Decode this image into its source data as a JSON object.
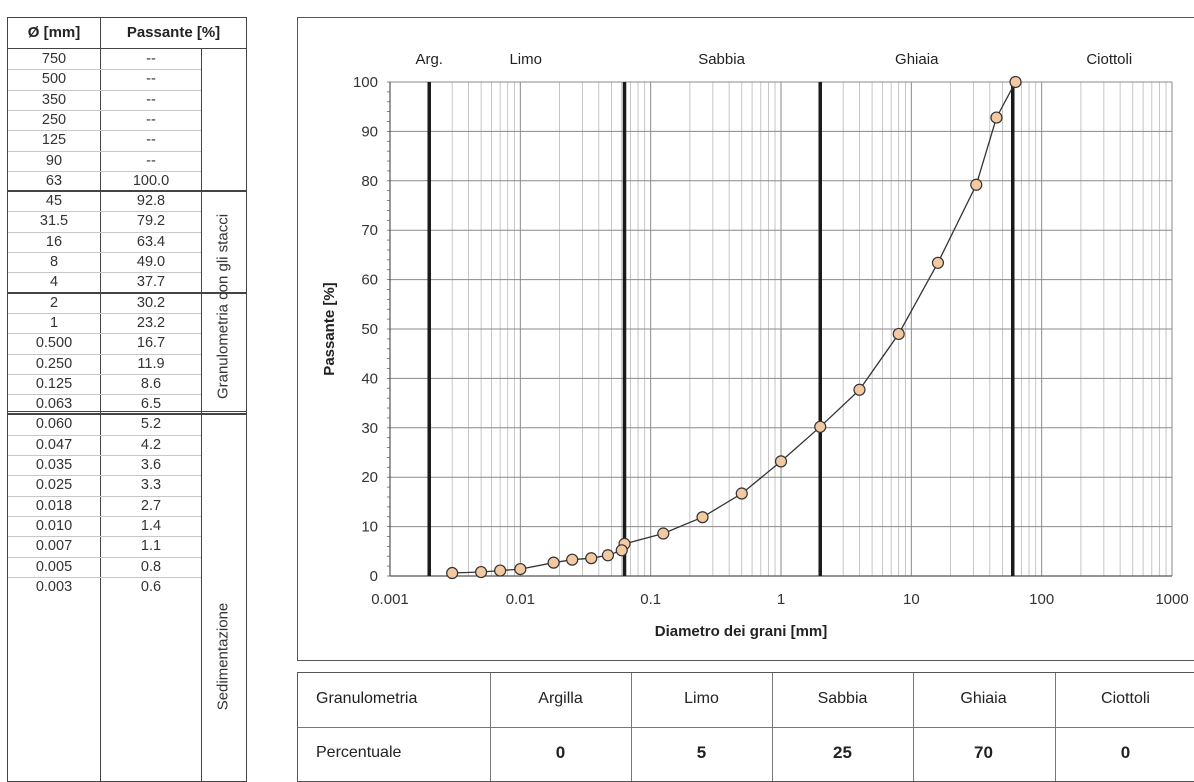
{
  "table": {
    "col_headers": [
      "Ø [mm]",
      "Passante [%]"
    ],
    "rows": [
      {
        "d": "750",
        "p": "--"
      },
      {
        "d": "500",
        "p": "--"
      },
      {
        "d": "350",
        "p": "--"
      },
      {
        "d": "250",
        "p": "--"
      },
      {
        "d": "125",
        "p": "--"
      },
      {
        "d": "90",
        "p": "--"
      },
      {
        "d": "63",
        "p": "100.0"
      },
      {
        "d": "45",
        "p": "92.8"
      },
      {
        "d": "31.5",
        "p": "79.2"
      },
      {
        "d": "16",
        "p": "63.4"
      },
      {
        "d": "8",
        "p": "49.0"
      },
      {
        "d": "4",
        "p": "37.7"
      },
      {
        "d": "2",
        "p": "30.2"
      },
      {
        "d": "1",
        "p": "23.2"
      },
      {
        "d": "0.500",
        "p": "16.7"
      },
      {
        "d": "0.250",
        "p": "11.9"
      },
      {
        "d": "0.125",
        "p": "8.6"
      },
      {
        "d": "0.063",
        "p": "6.5"
      },
      {
        "d": "0.060",
        "p": "5.2"
      },
      {
        "d": "0.047",
        "p": "4.2"
      },
      {
        "d": "0.035",
        "p": "3.6"
      },
      {
        "d": "0.025",
        "p": "3.3"
      },
      {
        "d": "0.018",
        "p": "2.7"
      },
      {
        "d": "0.010",
        "p": "1.4"
      },
      {
        "d": "0.007",
        "p": "1.1"
      },
      {
        "d": "0.005",
        "p": "0.8"
      },
      {
        "d": "0.003",
        "p": "0.6"
      }
    ],
    "group_sieves_label": "Granulometria con gli stacci",
    "group_sedimentation_label": "Sedimentazione"
  },
  "chart_data": {
    "type": "scatter",
    "xlabel": "Diametro dei grani [mm]",
    "ylabel": "Passante [%]",
    "xscale": "log",
    "xlim": [
      0.001,
      1000
    ],
    "ylim": [
      0,
      100
    ],
    "x_ticks": [
      "0.001",
      "0.01",
      "0.1",
      "1",
      "10",
      "100",
      "1000"
    ],
    "y_ticks": [
      "0",
      "10",
      "20",
      "30",
      "40",
      "50",
      "60",
      "70",
      "80",
      "90",
      "100"
    ],
    "grid": true,
    "zone_labels": [
      {
        "name": "Arg.",
        "x": 0.002
      },
      {
        "name": "Limo",
        "x": 0.011
      },
      {
        "name": "Sabbia",
        "x": 0.35
      },
      {
        "name": "Ghiaia",
        "x": 11
      },
      {
        "name": "Ciottoli",
        "x": 330
      }
    ],
    "zone_boundaries": [
      0.002,
      0.063,
      2,
      60
    ],
    "marker_color": "#f2c9a1",
    "series": [
      {
        "x": [
          63,
          45,
          31.5,
          16,
          8,
          4,
          2,
          1,
          0.5,
          0.25,
          0.125,
          0.063,
          0.06,
          0.047,
          0.035,
          0.025,
          0.018,
          0.01,
          0.007,
          0.005,
          0.003
        ],
        "y": [
          100.0,
          92.8,
          79.2,
          63.4,
          49.0,
          37.7,
          30.2,
          23.2,
          16.7,
          11.9,
          8.6,
          6.5,
          5.2,
          4.2,
          3.6,
          3.3,
          2.7,
          1.4,
          1.1,
          0.8,
          0.6
        ]
      }
    ]
  },
  "summary": {
    "row_label_1": "Granulometria",
    "row_label_2": "Percentuale",
    "columns": [
      {
        "name": "Argilla",
        "value": "0"
      },
      {
        "name": "Limo",
        "value": "5"
      },
      {
        "name": "Sabbia",
        "value": "25"
      },
      {
        "name": "Ghiaia",
        "value": "70"
      },
      {
        "name": "Ciottoli",
        "value": "0"
      }
    ]
  }
}
